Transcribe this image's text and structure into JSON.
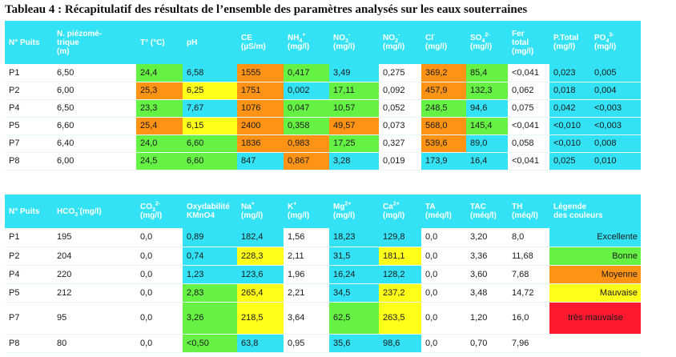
{
  "title": "Tableau 4 : Récapitulatif des résultats de l’ensemble des paramètres analysés sur les eaux souterraines",
  "colors": {
    "excellente": "#33E2F5",
    "bonne": "#66F244",
    "moyenne": "#FF9315",
    "mauvaise": "#FFFF1A",
    "tres_mauvaise": "#FF1930"
  },
  "table1": {
    "headers": {
      "puits": "N° Puits",
      "piezo": "N. piézomé-tique (m)",
      "temp": "T° (°C)",
      "ph": "pH",
      "ce": "CE (µS/m)",
      "nh4": "NH4+ (mg/l)",
      "no3": "NO3- (mg/l)",
      "no2": "NO2- (mg/l)",
      "cl": "Cl- (mg/l)",
      "so4": "SO42- (mg/l)",
      "fer": "Fer total (mg/l)",
      "ptotal": "P.Total (mg/l)",
      "po4": "PO43- (mg/l)"
    },
    "rows": [
      [
        "P1",
        "6,50",
        "24,4",
        "6,58",
        "1555",
        "0,417",
        "3,49",
        "0,275",
        "369,2",
        "85,4",
        "<0,041",
        "0,023",
        "0,005"
      ],
      [
        "P2",
        "6,00",
        "25,3",
        "6,25",
        "1751",
        "0,002",
        "17,11",
        "0,092",
        "457,9",
        "132,3",
        "0,062",
        "0,018",
        "0,004"
      ],
      [
        "P4",
        "6,50",
        "23,3",
        "7,67",
        "1076",
        "0,047",
        "10,57",
        "0,052",
        "248,5",
        "94,6",
        "0,075",
        "0,042",
        "<0,003"
      ],
      [
        "P5",
        "6,60",
        "25,4",
        "6,15",
        "2400",
        "0,358",
        "49,57",
        "0,073",
        "568,0",
        "145,4",
        "<0,041",
        "<0,010",
        "<0,003"
      ],
      [
        "P7",
        "6,40",
        "24,0",
        "6,60",
        "1836",
        "0,983",
        "17,25",
        "0,327",
        "539,6",
        "89,0",
        "0,058",
        "<0,010",
        "0,008"
      ],
      [
        "P8",
        "6,00",
        "24,5",
        "6,60",
        "847",
        "0,867",
        "3,28",
        "0,019",
        "173,9",
        "16,4",
        "<0,041",
        "0,025",
        "0,010"
      ]
    ]
  },
  "table2": {
    "headers": {
      "puits": "N° Puits",
      "hco3": "HCO3-(mg/l)",
      "co3": "CO32- (mg/l)",
      "oxy": "Oxydabilité KMnO4",
      "na": "Na+ (mg/l)",
      "k": "K+ (mg/l)",
      "mg": "Mg2+ (mg/l)",
      "ca": "Ca2+ (mg/l)",
      "ta": "TA (méq/l)",
      "tac": "TAC (méq/l)",
      "th": "TH (méq/l)",
      "legend": "Légende des couleurs"
    },
    "rows": [
      [
        "P1",
        "195",
        "0,0",
        "0,89",
        "182,4",
        "1,56",
        "18,23",
        "129,8",
        "0,0",
        "3,20",
        "8,0"
      ],
      [
        "P2",
        "204",
        "0,0",
        "0,74",
        "228,3",
        "2,11",
        "31,5",
        "181,1",
        "0,0",
        "3,36",
        "11,68"
      ],
      [
        "P4",
        "220",
        "0,0",
        "1,23",
        "123,6",
        "1,96",
        "16,24",
        "128,2",
        "0,0",
        "3,60",
        "7,68"
      ],
      [
        "P5",
        "212",
        "0,0",
        "2,83",
        "265,4",
        "2,21",
        "34,5",
        "237,2",
        "0,0",
        "3,48",
        "14,72"
      ],
      [
        "P7",
        "95",
        "0,0",
        "3,26",
        "218,5",
        "3,64",
        "62,5",
        "263,5",
        "0,0",
        "1,20",
        "16,0"
      ],
      [
        "P8",
        "80",
        "0,0",
        "<0,50",
        "63,8",
        "0,95",
        "35,6",
        "98,6",
        "0,0",
        "0,70",
        "7,96"
      ]
    ],
    "legend_items": [
      "Excellente",
      "Bonne",
      "Moyenne",
      "Mauvaise",
      "très mauvaise"
    ]
  }
}
